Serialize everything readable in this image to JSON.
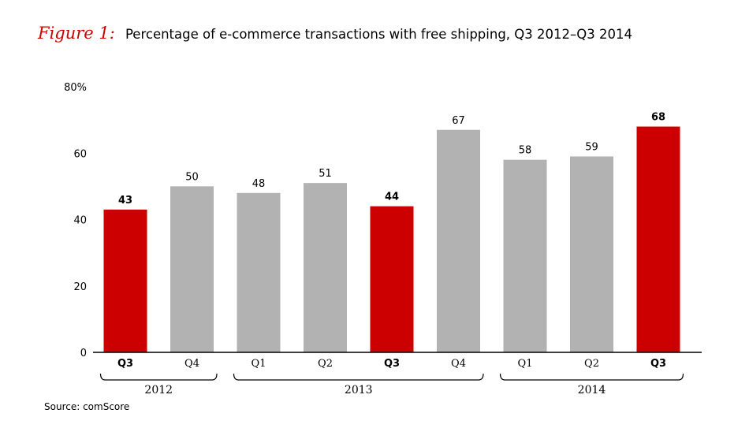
{
  "figure_label": "Figure 1:",
  "title": "Percentage of e-commerce transactions with free shipping, Q3 2012–Q3 2014",
  "source": "Source: comScore",
  "colors": {
    "highlight": "#cc0000",
    "default": "#b2b2b2"
  },
  "chart_data": {
    "type": "bar",
    "categories": [
      "Q3",
      "Q4",
      "Q1",
      "Q2",
      "Q3",
      "Q4",
      "Q1",
      "Q2",
      "Q3"
    ],
    "values": [
      43,
      50,
      48,
      51,
      44,
      67,
      58,
      59,
      68
    ],
    "highlighted": [
      true,
      false,
      false,
      false,
      true,
      false,
      false,
      false,
      true
    ],
    "year_groups": [
      {
        "label": "2012",
        "start": 0,
        "end": 1
      },
      {
        "label": "2013",
        "start": 2,
        "end": 5
      },
      {
        "label": "2014",
        "start": 6,
        "end": 8
      }
    ],
    "y_ticks": [
      "0",
      "20",
      "40",
      "60",
      "80%"
    ],
    "ylim": [
      0,
      80
    ],
    "grid": false
  }
}
